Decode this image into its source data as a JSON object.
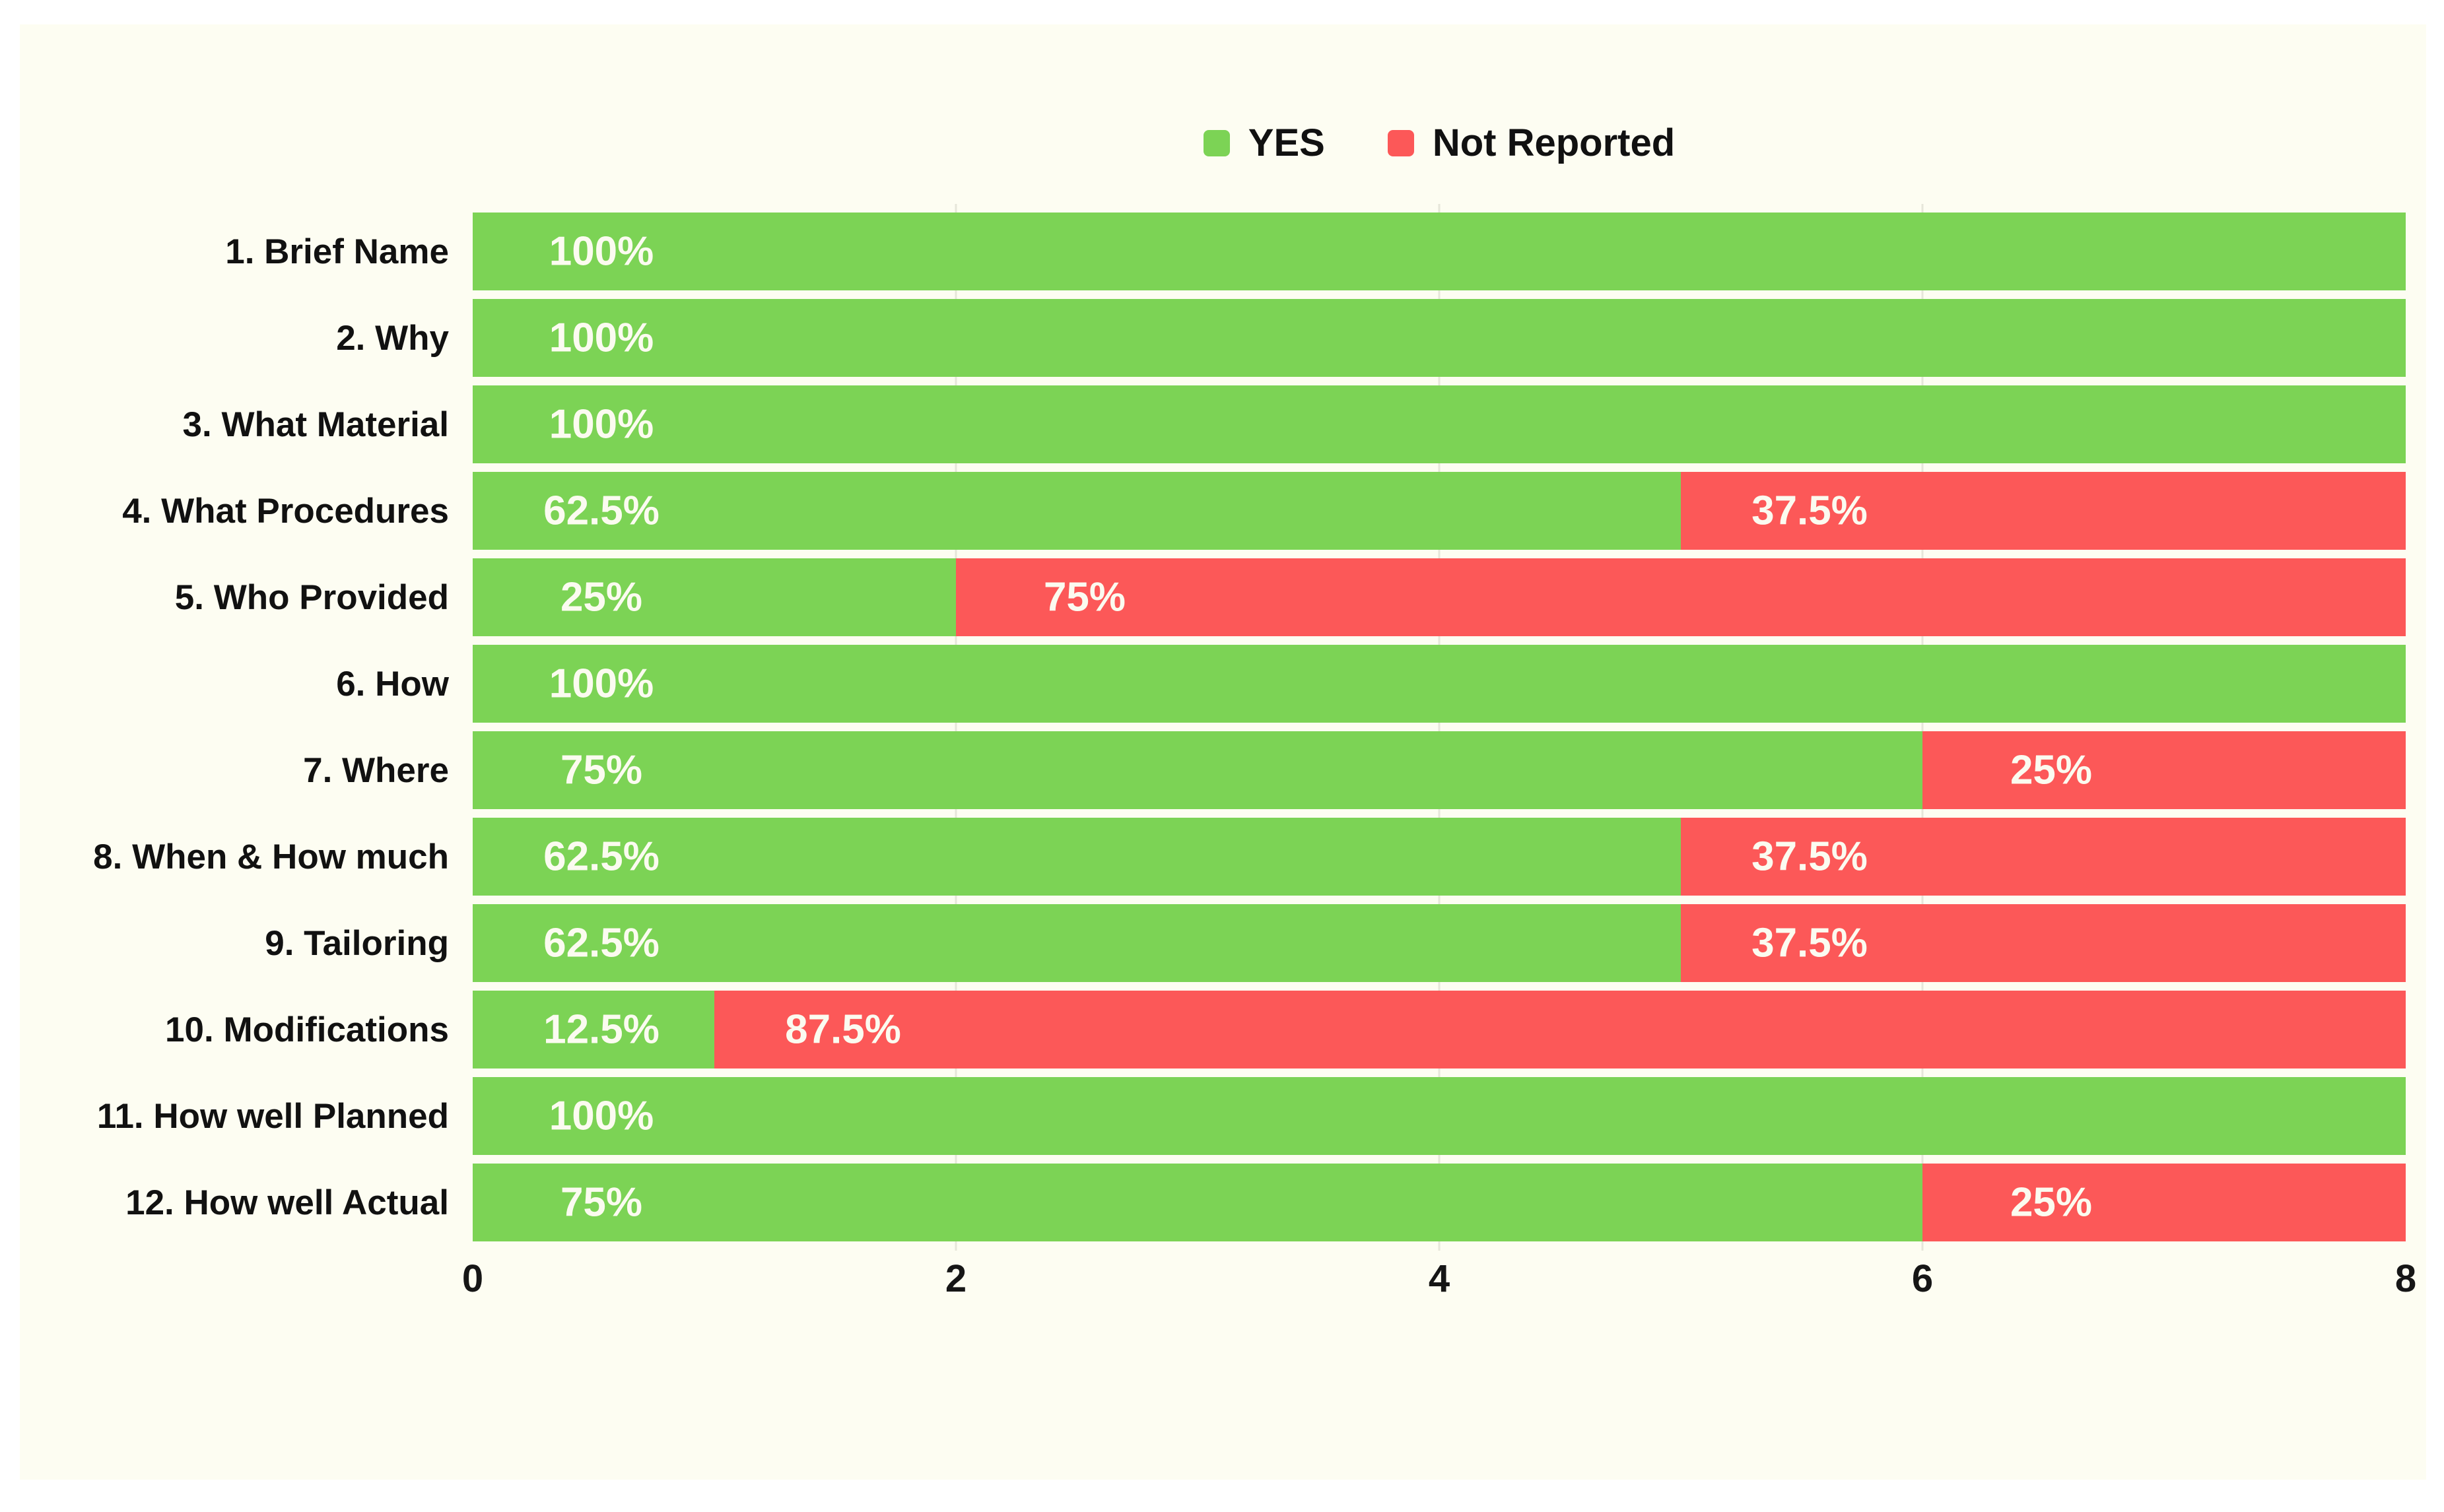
{
  "page": {
    "background": "#FFFFFF",
    "panel_background": "#FDFDF2",
    "gridline_color": "#E6E6DA",
    "text_color": "#111111",
    "bar_label_color": "#FBFBF0"
  },
  "legend": {
    "items": [
      {
        "label": "YES",
        "color": "#7CD355"
      },
      {
        "label": "Not Reported",
        "color": "#FC5858"
      }
    ]
  },
  "chart_data": {
    "type": "bar",
    "orientation": "horizontal",
    "stacked": true,
    "title": "",
    "xlabel": "",
    "ylabel": "",
    "xlim": [
      0,
      8
    ],
    "x_ticks": [
      "0",
      "2",
      "4",
      "6",
      "8"
    ],
    "grid_tick_values": [
      2,
      4,
      6
    ],
    "grid": true,
    "legend_position": "top-center",
    "categories": [
      "1. Brief Name",
      "2. Why",
      "3. What Material",
      "4. What Procedures",
      "5. Who Provided",
      "6. How",
      "7. Where",
      "8. When & How much",
      "9. Tailoring",
      "10. Modifications",
      "11. How well Planned",
      "12. How well Actual"
    ],
    "series": [
      {
        "name": "YES",
        "color": "#7CD355",
        "values": [
          8,
          8,
          8,
          5,
          2,
          8,
          6,
          5,
          5,
          1,
          8,
          6
        ],
        "labels": [
          "100%",
          "100%",
          "100%",
          "62.5%",
          "25%",
          "100%",
          "75%",
          "62.5%",
          "62.5%",
          "12.5%",
          "100%",
          "75%"
        ]
      },
      {
        "name": "Not Reported",
        "color": "#FC5858",
        "values": [
          0,
          0,
          0,
          3,
          6,
          0,
          2,
          3,
          3,
          7,
          0,
          2
        ],
        "labels": [
          "",
          "",
          "",
          "37.5%",
          "75%",
          "",
          "25%",
          "37.5%",
          "37.5%",
          "87.5%",
          "",
          "25%"
        ]
      }
    ]
  }
}
